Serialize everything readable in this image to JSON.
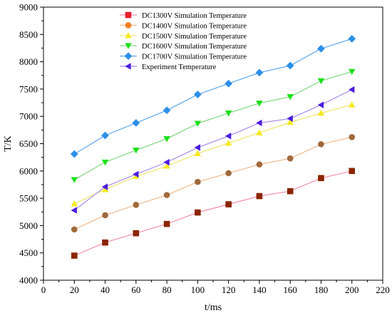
{
  "chart_data": {
    "type": "line",
    "title": "",
    "xlabel": "t/ms",
    "ylabel": "T/K",
    "xlim": [
      0,
      220
    ],
    "ylim": [
      4000,
      9000
    ],
    "xticks": [
      0,
      20,
      40,
      60,
      80,
      100,
      120,
      140,
      160,
      180,
      200,
      220
    ],
    "yticks": [
      4000,
      4500,
      5000,
      5500,
      6000,
      6500,
      7000,
      7500,
      8000,
      8500,
      9000
    ],
    "grid": false,
    "legend_position": "top-center",
    "x": [
      20,
      40,
      60,
      80,
      100,
      120,
      140,
      160,
      180,
      200
    ],
    "series": [
      {
        "name": "DC1300V Simulation Temperature",
        "marker": "square",
        "color": "#8b2500",
        "legend_color": "#e8212b",
        "line_color": "#f48fb1",
        "values": [
          4450,
          4690,
          4860,
          5030,
          5240,
          5390,
          5540,
          5630,
          5870,
          6000
        ]
      },
      {
        "name": "DC1400V Simulation Temperature",
        "marker": "circle",
        "color": "#a0693c",
        "legend_color": "#f07d1e",
        "line_color": "#f0b98c",
        "values": [
          4930,
          5190,
          5380,
          5560,
          5800,
          5960,
          6120,
          6230,
          6490,
          6620
        ]
      },
      {
        "name": "DC1500V Simulation Temperature",
        "marker": "triangle-up",
        "color": "#f5ea1e",
        "legend_color": "#f5ea1e",
        "line_color": "#f0e36c",
        "values": [
          5400,
          5660,
          5900,
          6090,
          6320,
          6510,
          6700,
          6890,
          7060,
          7210
        ]
      },
      {
        "name": "DC1600V Simulation Temperature",
        "marker": "triangle-down",
        "color": "#1be01b",
        "legend_color": "#1be01b",
        "line_color": "#7fd67f",
        "values": [
          5840,
          6160,
          6380,
          6590,
          6870,
          7060,
          7240,
          7360,
          7650,
          7820
        ]
      },
      {
        "name": "DC1700V Simulation Temperature",
        "marker": "diamond",
        "color": "#2c8fe8",
        "legend_color": "#2c8fe8",
        "line_color": "#5ea7e8",
        "values": [
          6310,
          6650,
          6880,
          7110,
          7400,
          7600,
          7800,
          7930,
          8240,
          8420
        ]
      },
      {
        "name": "Experiment Temperature",
        "marker": "triangle-left",
        "color": "#4b1ee0",
        "legend_color": "#4b1ee0",
        "line_color": "#a88ce8",
        "values": [
          5280,
          5710,
          5940,
          6160,
          6430,
          6640,
          6880,
          6960,
          7210,
          7490
        ]
      }
    ]
  }
}
